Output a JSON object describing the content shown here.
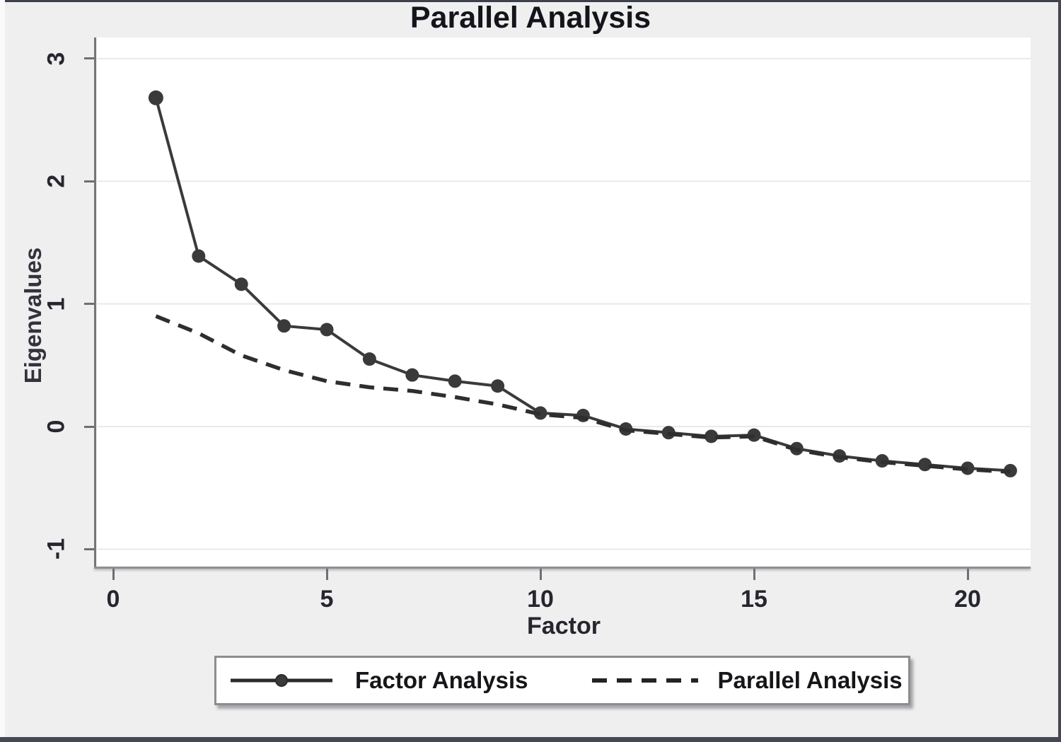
{
  "title": "Parallel Analysis",
  "axes": {
    "y_label": "Eigenvalues",
    "x_label": "Factor"
  },
  "legend": {
    "items": [
      {
        "label": "Factor Analysis",
        "style": "solid-with-marker"
      },
      {
        "label": "Parallel Analysis",
        "style": "dashed"
      }
    ]
  },
  "colors": {
    "series_solid": "#3a3a3a",
    "series_dashed": "#2e2e2e",
    "gridline": "#e9e9ea",
    "plot_bg": "#ffffff",
    "outer_bg": "#efeff0"
  },
  "chart_data": {
    "type": "line",
    "title": "Parallel Analysis",
    "xlabel": "Factor",
    "ylabel": "Eigenvalues",
    "xlim": [
      -0.38,
      21.47
    ],
    "ylim": [
      -1.15,
      3.17
    ],
    "x_ticks": [
      0,
      5,
      10,
      15,
      20
    ],
    "y_ticks": [
      -1,
      0,
      1,
      2,
      3
    ],
    "grid": true,
    "legend_position": "bottom",
    "x": [
      1,
      2,
      3,
      4,
      5,
      6,
      7,
      8,
      9,
      10,
      11,
      12,
      13,
      14,
      15,
      16,
      17,
      18,
      19,
      20,
      21
    ],
    "series": [
      {
        "name": "Factor Analysis",
        "line": "solid",
        "marker": "circle",
        "values": [
          2.68,
          1.39,
          1.16,
          0.82,
          0.79,
          0.55,
          0.42,
          0.37,
          0.33,
          0.11,
          0.09,
          -0.02,
          -0.05,
          -0.08,
          -0.07,
          -0.18,
          -0.24,
          -0.28,
          -0.31,
          -0.34,
          -0.36
        ]
      },
      {
        "name": "Parallel Analysis",
        "line": "dashed",
        "marker": "none",
        "values": [
          0.9,
          0.76,
          0.58,
          0.46,
          0.37,
          0.32,
          0.29,
          0.24,
          0.18,
          0.1,
          0.07,
          -0.03,
          -0.06,
          -0.09,
          -0.08,
          -0.19,
          -0.25,
          -0.29,
          -0.32,
          -0.35,
          -0.37
        ]
      }
    ]
  }
}
